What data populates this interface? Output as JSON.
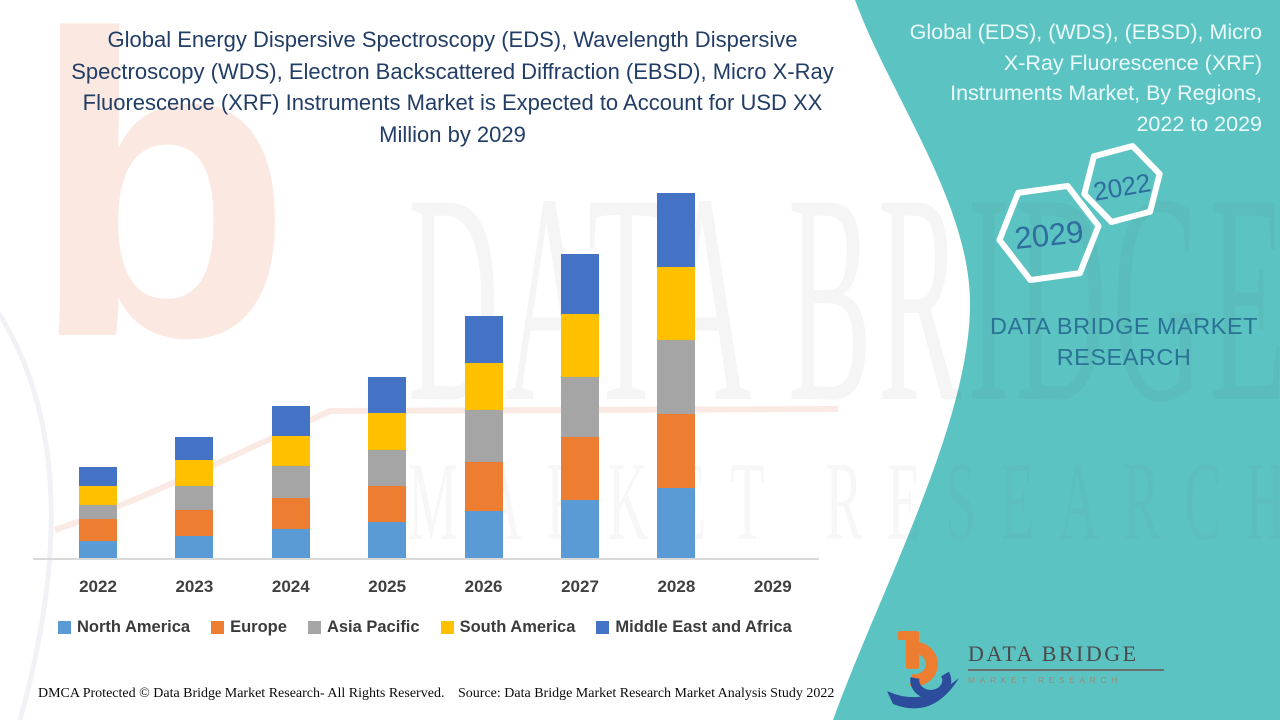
{
  "header": {
    "title": "Global Energy Dispersive Spectroscopy (EDS), Wavelength Dispersive\nSpectroscopy (WDS), Electron Backscattered Diffraction (EBSD), Micro X-Ray\nFluorescence (XRF) Instruments Market is Expected to Account for USD XX\nMillion by 2029",
    "title_color": "#223D66"
  },
  "side_panel": {
    "title": "Global (EDS), (WDS), (EBSD), Micro\nX-Ray Fluorescence (XRF)\nInstruments Market, By Regions,\n2022 to 2029",
    "hex_small_label": "2022",
    "hex_large_label": "2029",
    "brand_text": "DATA BRIDGE MARKET\nRESEARCH",
    "panel_color": "#5CC3C3",
    "title_color": "#EAF9F9",
    "hex_label_color": "#2E6D9E",
    "brand_text_color": "#2A7396"
  },
  "watermark": {
    "logo_letter": "b",
    "line1": "DATA BRIDGE",
    "line2": "MARKET RESEARCH"
  },
  "chart_data": {
    "type": "bar",
    "stacked": true,
    "title": "Global Energy Dispersive Spectroscopy (EDS), Wavelength Dispersive Spectroscopy (WDS), Electron Backscattered Diffraction (EBSD), Micro X-Ray Fluorescence (XRF) Instruments Market is Expected to Account for USD XX Million by 2029",
    "xlabel": "",
    "ylabel": "",
    "y_axis_visible": false,
    "gridlines": false,
    "legend_position": "bottom",
    "ylim": [
      0,
      400
    ],
    "categories": [
      "2022",
      "2023",
      "2024",
      "2025",
      "2026",
      "2027",
      "2028",
      "2029"
    ],
    "series": [
      {
        "name": "North America",
        "color": "#5B9BD5",
        "values": [
          18,
          23,
          30,
          37,
          48,
          59,
          71,
          0
        ]
      },
      {
        "name": "Europe",
        "color": "#ED7D31",
        "values": [
          22,
          26,
          31,
          36,
          49,
          63,
          74,
          0
        ]
      },
      {
        "name": "Asia Pacific",
        "color": "#A5A5A5",
        "values": [
          14,
          24,
          32,
          36,
          52,
          60,
          74,
          0
        ]
      },
      {
        "name": "South America",
        "color": "#FFC000",
        "values": [
          19,
          26,
          30,
          37,
          47,
          63,
          73,
          0
        ]
      },
      {
        "name": "Middle East and Africa",
        "color": "#4472C4",
        "values": [
          19,
          23,
          30,
          36,
          47,
          60,
          74,
          0
        ]
      }
    ]
  },
  "footer": {
    "left": "DMCA Protected © Data Bridge Market Research- All Rights Reserved.",
    "source": "Source: Data Bridge Market Research Market Analysis Study 2022"
  },
  "logo": {
    "name": "DATA BRIDGE",
    "tagline": "MARKET RESEARCH"
  }
}
